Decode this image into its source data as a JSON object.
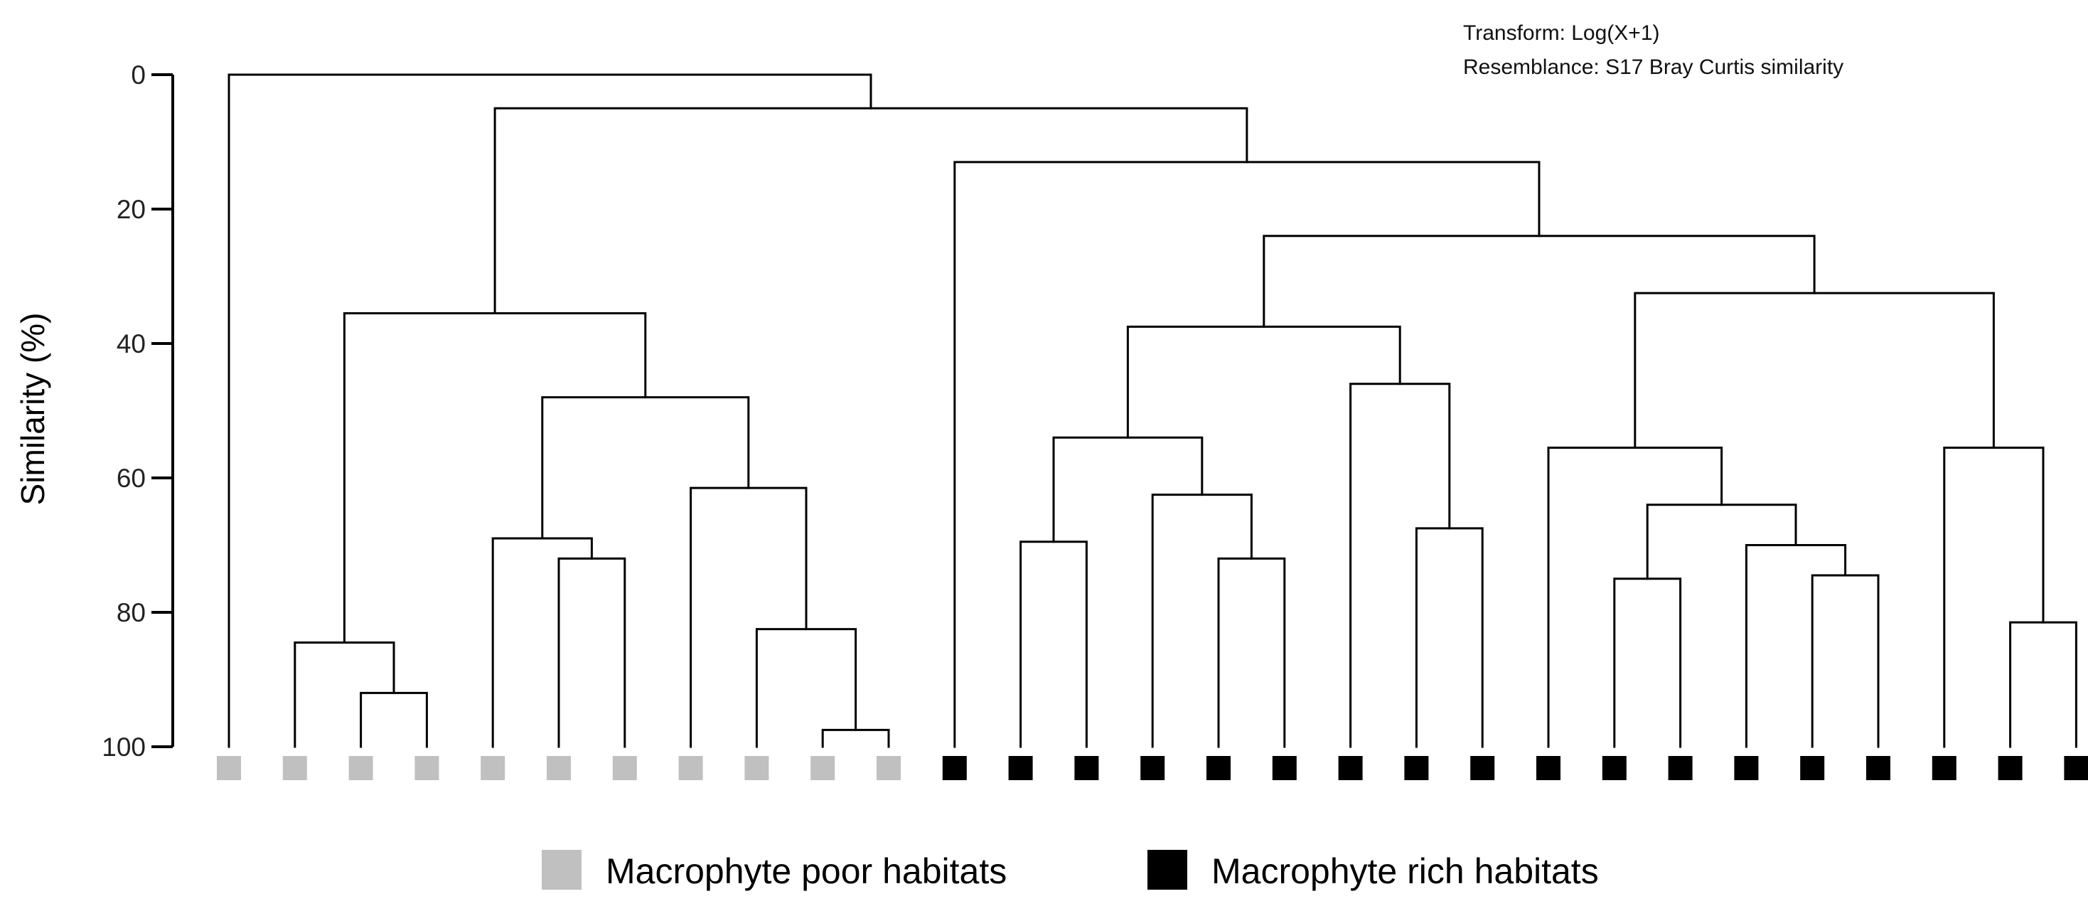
{
  "chart_data": {
    "type": "dendrogram",
    "ylabel": "Similarity (%)",
    "ylim": [
      0,
      100
    ],
    "yticks": [
      0,
      20,
      40,
      60,
      80,
      100
    ],
    "y_inverted": true,
    "annotations": [
      "Transform: Log(X+1)",
      "Resemblance: S17 Bray Curtis similarity"
    ],
    "legend": [
      {
        "label": "Macrophyte poor habitats",
        "color": "#c0c0c0"
      },
      {
        "label": "Macrophyte rich habitats",
        "color": "#000000"
      }
    ],
    "leaves": [
      {
        "group": "poor"
      },
      {
        "group": "poor"
      },
      {
        "group": "poor"
      },
      {
        "group": "poor"
      },
      {
        "group": "poor"
      },
      {
        "group": "poor"
      },
      {
        "group": "poor"
      },
      {
        "group": "poor"
      },
      {
        "group": "poor"
      },
      {
        "group": "poor"
      },
      {
        "group": "poor"
      },
      {
        "group": "rich"
      },
      {
        "group": "rich"
      },
      {
        "group": "rich"
      },
      {
        "group": "rich"
      },
      {
        "group": "rich"
      },
      {
        "group": "rich"
      },
      {
        "group": "rich"
      },
      {
        "group": "rich"
      },
      {
        "group": "rich"
      },
      {
        "group": "rich"
      },
      {
        "group": "rich"
      },
      {
        "group": "rich"
      },
      {
        "group": "rich"
      },
      {
        "group": "rich"
      },
      {
        "group": "rich"
      },
      {
        "group": "rich"
      },
      {
        "group": "rich"
      },
      {
        "group": "rich"
      }
    ],
    "merges": [
      {
        "id": "m1",
        "children": [
          "L2",
          "L3"
        ],
        "similarity": 92
      },
      {
        "id": "m2",
        "children": [
          "L1",
          "m1"
        ],
        "similarity": 84.5
      },
      {
        "id": "m3",
        "children": [
          "L5",
          "L6"
        ],
        "similarity": 72
      },
      {
        "id": "m4",
        "children": [
          "L4",
          "m3"
        ],
        "similarity": 69
      },
      {
        "id": "m5",
        "children": [
          "L9",
          "L10"
        ],
        "similarity": 97.5
      },
      {
        "id": "m6",
        "children": [
          "L8",
          "m5"
        ],
        "similarity": 82.5
      },
      {
        "id": "m7",
        "children": [
          "L7",
          "m6"
        ],
        "similarity": 61.5
      },
      {
        "id": "m8",
        "children": [
          "m4",
          "m7"
        ],
        "similarity": 48
      },
      {
        "id": "m9",
        "children": [
          "m2",
          "m8"
        ],
        "similarity": 35.5
      },
      {
        "id": "m10",
        "children": [
          "L12",
          "L13"
        ],
        "similarity": 69.5
      },
      {
        "id": "m11",
        "children": [
          "L15",
          "L16"
        ],
        "similarity": 72
      },
      {
        "id": "m12",
        "children": [
          "L14",
          "m11"
        ],
        "similarity": 62.5
      },
      {
        "id": "m13",
        "children": [
          "m10",
          "m12"
        ],
        "similarity": 54
      },
      {
        "id": "m14",
        "children": [
          "L18",
          "L19"
        ],
        "similarity": 67.5
      },
      {
        "id": "m15",
        "children": [
          "L17",
          "m14"
        ],
        "similarity": 46
      },
      {
        "id": "m16",
        "children": [
          "m13",
          "m15"
        ],
        "similarity": 37.5
      },
      {
        "id": "m17",
        "children": [
          "L21",
          "L22"
        ],
        "similarity": 75
      },
      {
        "id": "m18",
        "children": [
          "L24",
          "L25"
        ],
        "similarity": 74.5
      },
      {
        "id": "m19",
        "children": [
          "L23",
          "m18"
        ],
        "similarity": 70
      },
      {
        "id": "m20",
        "children": [
          "m17",
          "m19"
        ],
        "similarity": 64
      },
      {
        "id": "m21",
        "children": [
          "L20",
          "m20"
        ],
        "similarity": 55.5
      },
      {
        "id": "m22",
        "children": [
          "L27",
          "L28"
        ],
        "similarity": 81.5
      },
      {
        "id": "m23",
        "children": [
          "L26",
          "m22"
        ],
        "similarity": 55.5
      },
      {
        "id": "m24",
        "children": [
          "m21",
          "m23"
        ],
        "similarity": 32.5
      },
      {
        "id": "m25",
        "children": [
          "m16",
          "m24"
        ],
        "similarity": 24
      },
      {
        "id": "m26",
        "children": [
          "L11",
          "m25"
        ],
        "similarity": 13
      },
      {
        "id": "m27",
        "children": [
          "m9",
          "m26"
        ],
        "similarity": 5
      },
      {
        "id": "m28",
        "children": [
          "L0",
          "m27"
        ],
        "similarity": 0
      }
    ]
  }
}
